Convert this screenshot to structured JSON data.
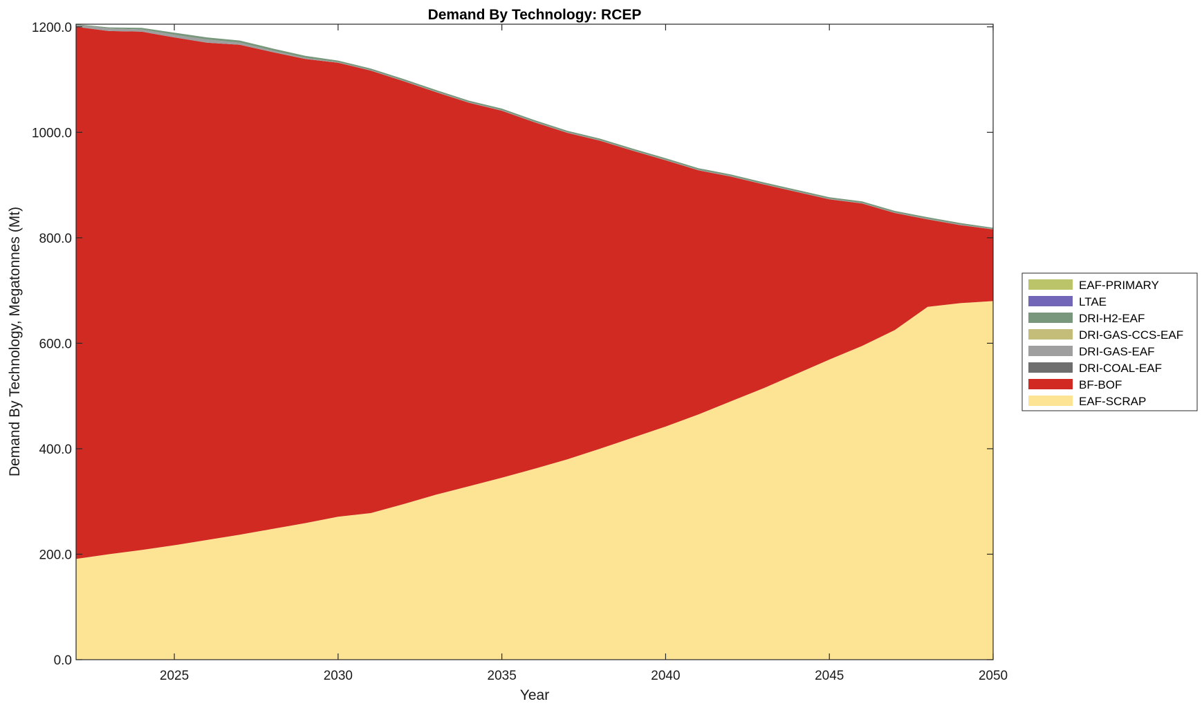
{
  "chart_data": {
    "type": "area",
    "stacked": true,
    "title": "Demand By Technology: RCEP",
    "xlabel": "Year",
    "ylabel": "Demand By Technology, Megatonnes (Mt)",
    "xlim": [
      2022,
      2050
    ],
    "ylim": [
      0,
      1205
    ],
    "xticks": [
      2025,
      2030,
      2035,
      2040,
      2045,
      2050
    ],
    "yticks": [
      0,
      200,
      400,
      600,
      800,
      1000,
      1200
    ],
    "ytick_labels": [
      "0.0",
      "200.0",
      "400.0",
      "600.0",
      "800.0",
      "1000.0",
      "1200.0"
    ],
    "grid": false,
    "legend_position": "right",
    "x": [
      2022,
      2023,
      2024,
      2025,
      2026,
      2027,
      2028,
      2029,
      2030,
      2031,
      2032,
      2033,
      2034,
      2035,
      2036,
      2037,
      2038,
      2039,
      2040,
      2041,
      2042,
      2043,
      2044,
      2045,
      2046,
      2047,
      2048,
      2049,
      2050
    ],
    "series": [
      {
        "name": "EAF-SCRAP",
        "color": "#fde495",
        "values": [
          191,
          200,
          208,
          217,
          227,
          237,
          248,
          259,
          271,
          278,
          295,
          313,
          329,
          345,
          362,
          380,
          400,
          421,
          442,
          465,
          490,
          515,
          542,
          569,
          595,
          625,
          669,
          676,
          680
        ]
      },
      {
        "name": "BF-BOF",
        "color": "#d02a23",
        "values": [
          1009,
          992,
          983,
          963,
          943,
          929,
          904,
          880,
          861,
          839,
          802,
          763,
          727,
          696,
          657,
          619,
          584,
          544,
          505,
          463,
          426,
          386,
          345,
          304,
          270,
          222,
          166,
          148,
          136
        ]
      },
      {
        "name": "DRI-COAL-EAF",
        "color": "#6e6e6e",
        "values": [
          0,
          0,
          0,
          0,
          0,
          0,
          0,
          0,
          0,
          0,
          0,
          0,
          0,
          0,
          0,
          0,
          0,
          0,
          0,
          0,
          0,
          0,
          0,
          0,
          0,
          0,
          0,
          0,
          0
        ]
      },
      {
        "name": "DRI-GAS-EAF",
        "color": "#9f9f9f",
        "values": [
          4,
          5,
          4,
          5,
          6,
          4,
          3,
          2,
          1,
          1,
          1,
          1,
          1,
          1,
          1,
          1,
          1,
          1,
          1,
          1,
          1,
          1,
          1,
          1,
          1,
          1,
          1,
          1,
          1
        ]
      },
      {
        "name": "DRI-GAS-CCS-EAF",
        "color": "#c4bd7a",
        "values": [
          0,
          0,
          0,
          0,
          0,
          0,
          0,
          0,
          0,
          0,
          0,
          0,
          0,
          0,
          0,
          0,
          0,
          0,
          0,
          0,
          0,
          0,
          0,
          0,
          0,
          0,
          0,
          0,
          0
        ]
      },
      {
        "name": "DRI-H2-EAF",
        "color": "#78977c",
        "values": [
          1,
          2,
          3,
          4,
          4,
          4,
          4,
          4,
          3,
          3,
          3,
          3,
          3,
          3,
          3,
          3,
          3,
          3,
          3,
          3,
          3,
          3,
          3,
          3,
          3,
          3,
          3,
          3,
          2
        ]
      },
      {
        "name": "LTAE",
        "color": "#7266b8",
        "values": [
          0,
          0,
          0,
          0,
          0,
          0,
          0,
          0,
          0,
          0,
          0,
          0,
          0,
          0,
          0,
          0,
          0,
          0,
          0,
          0,
          0,
          0,
          0,
          0,
          0,
          0,
          0,
          0,
          0
        ]
      },
      {
        "name": "EAF-PRIMARY",
        "color": "#bcc46a",
        "values": [
          0,
          0,
          0,
          0,
          0,
          0,
          0,
          0,
          0,
          0,
          0,
          0,
          0,
          0,
          0,
          0,
          0,
          0,
          0,
          0,
          0,
          0,
          0,
          0,
          0,
          0,
          0,
          0,
          0
        ]
      }
    ],
    "legend_order": [
      "EAF-PRIMARY",
      "LTAE",
      "DRI-H2-EAF",
      "DRI-GAS-CCS-EAF",
      "DRI-GAS-EAF",
      "DRI-COAL-EAF",
      "BF-BOF",
      "EAF-SCRAP"
    ]
  }
}
